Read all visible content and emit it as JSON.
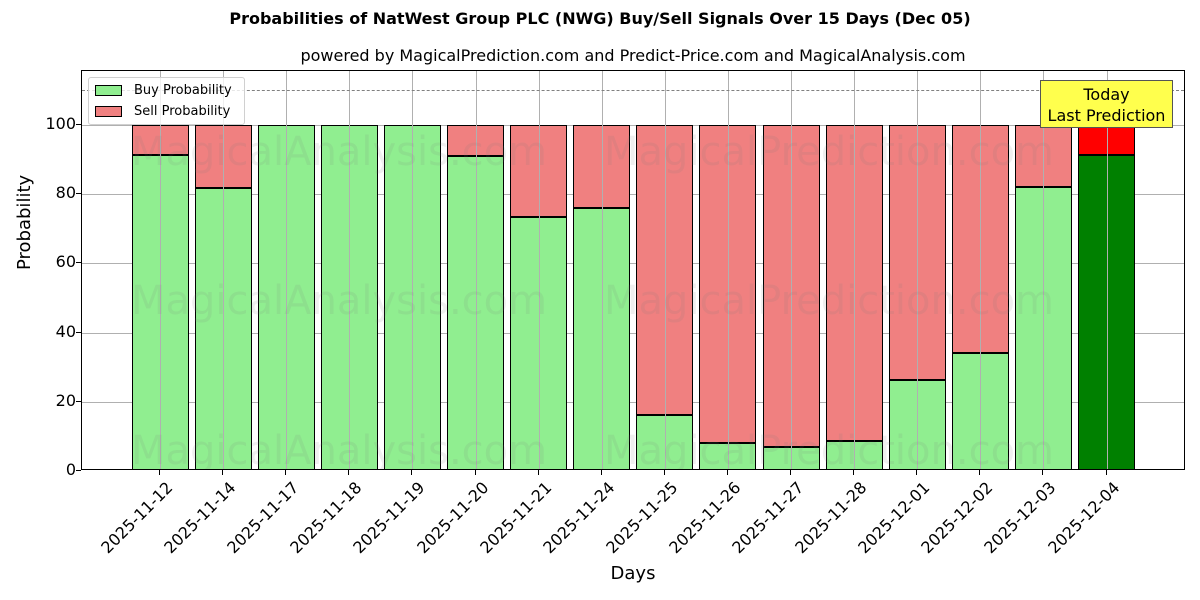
{
  "header": {
    "title": "Probabilities of NatWest Group PLC (NWG) Buy/Sell Signals Over 15 Days (Dec 05)",
    "subtitle": "powered by MagicalPrediction.com and Predict-Price.com and MagicalAnalysis.com"
  },
  "axes": {
    "xlabel": "Days",
    "ylabel": "Probability",
    "yticks": [
      "0",
      "20",
      "40",
      "60",
      "80",
      "100"
    ]
  },
  "legend": {
    "buy_label": "Buy Probability",
    "sell_label": "Sell Probability"
  },
  "annotation": {
    "line1": "Today",
    "line2": "Last Prediction"
  },
  "watermarks": [
    "MagicalAnalysis.com",
    "MagicalPrediction.com"
  ],
  "colors": {
    "buy": "#90ee90",
    "sell": "#f08080",
    "today_buy": "#008000",
    "today_sell": "#ff0000",
    "annotation_bg": "#ffff4d"
  },
  "chart_data": {
    "type": "bar",
    "stacked": true,
    "title": "Probabilities of NatWest Group PLC (NWG) Buy/Sell Signals Over 15 Days (Dec 05)",
    "subtitle": "powered by MagicalPrediction.com and Predict-Price.com and MagicalAnalysis.com",
    "xlabel": "Days",
    "ylabel": "Probability",
    "ylim": [
      0,
      115.6
    ],
    "yticks": [
      0,
      20,
      40,
      60,
      80,
      100
    ],
    "grid": true,
    "legend_position": "upper left",
    "reference_line": {
      "y": 110,
      "style": "dashed",
      "color": "#808080"
    },
    "categories": [
      "2025-11-12",
      "2025-11-14",
      "2025-11-17",
      "2025-11-18",
      "2025-11-19",
      "2025-11-20",
      "2025-11-21",
      "2025-11-24",
      "2025-11-25",
      "2025-11-26",
      "2025-11-27",
      "2025-11-28",
      "2025-12-01",
      "2025-12-02",
      "2025-12-03",
      "2025-12-04"
    ],
    "series": [
      {
        "name": "Buy Probability",
        "values": [
          91.2,
          81.8,
          100,
          100,
          100,
          91.0,
          73.4,
          75.9,
          16.3,
          8.0,
          7.0,
          8.8,
          26.4,
          34.2,
          82.0,
          91.3
        ]
      },
      {
        "name": "Sell Probability",
        "values": [
          8.8,
          18.2,
          0,
          0,
          0,
          9.0,
          26.6,
          24.1,
          83.7,
          92.0,
          93.0,
          91.2,
          73.6,
          65.8,
          18.0,
          8.7
        ]
      }
    ],
    "annotations": [
      {
        "text": "Today\nLast Prediction",
        "x": "2025-12-04"
      }
    ]
  }
}
